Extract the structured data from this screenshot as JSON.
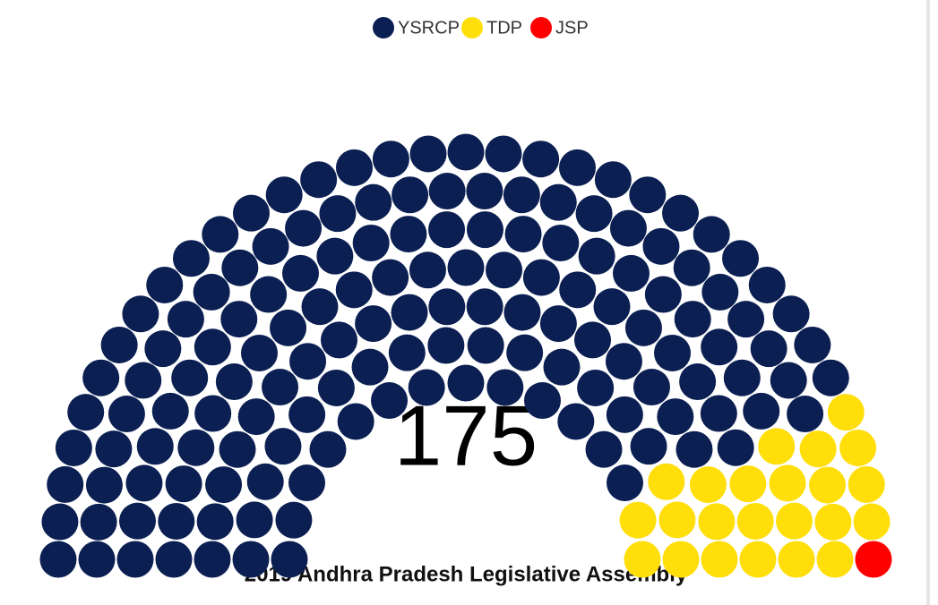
{
  "chart_data": {
    "type": "parliament",
    "title": "2019 Andhra Pradesh Legislative Assembly",
    "total": "175",
    "series": [
      {
        "name": "YSRCP",
        "color": "#0b1f52",
        "values": [
          151
        ]
      },
      {
        "name": "TDP",
        "color": "#ffde0a",
        "values": [
          23
        ]
      },
      {
        "name": "JSP",
        "color": "#ff0000",
        "values": [
          1
        ]
      }
    ]
  }
}
